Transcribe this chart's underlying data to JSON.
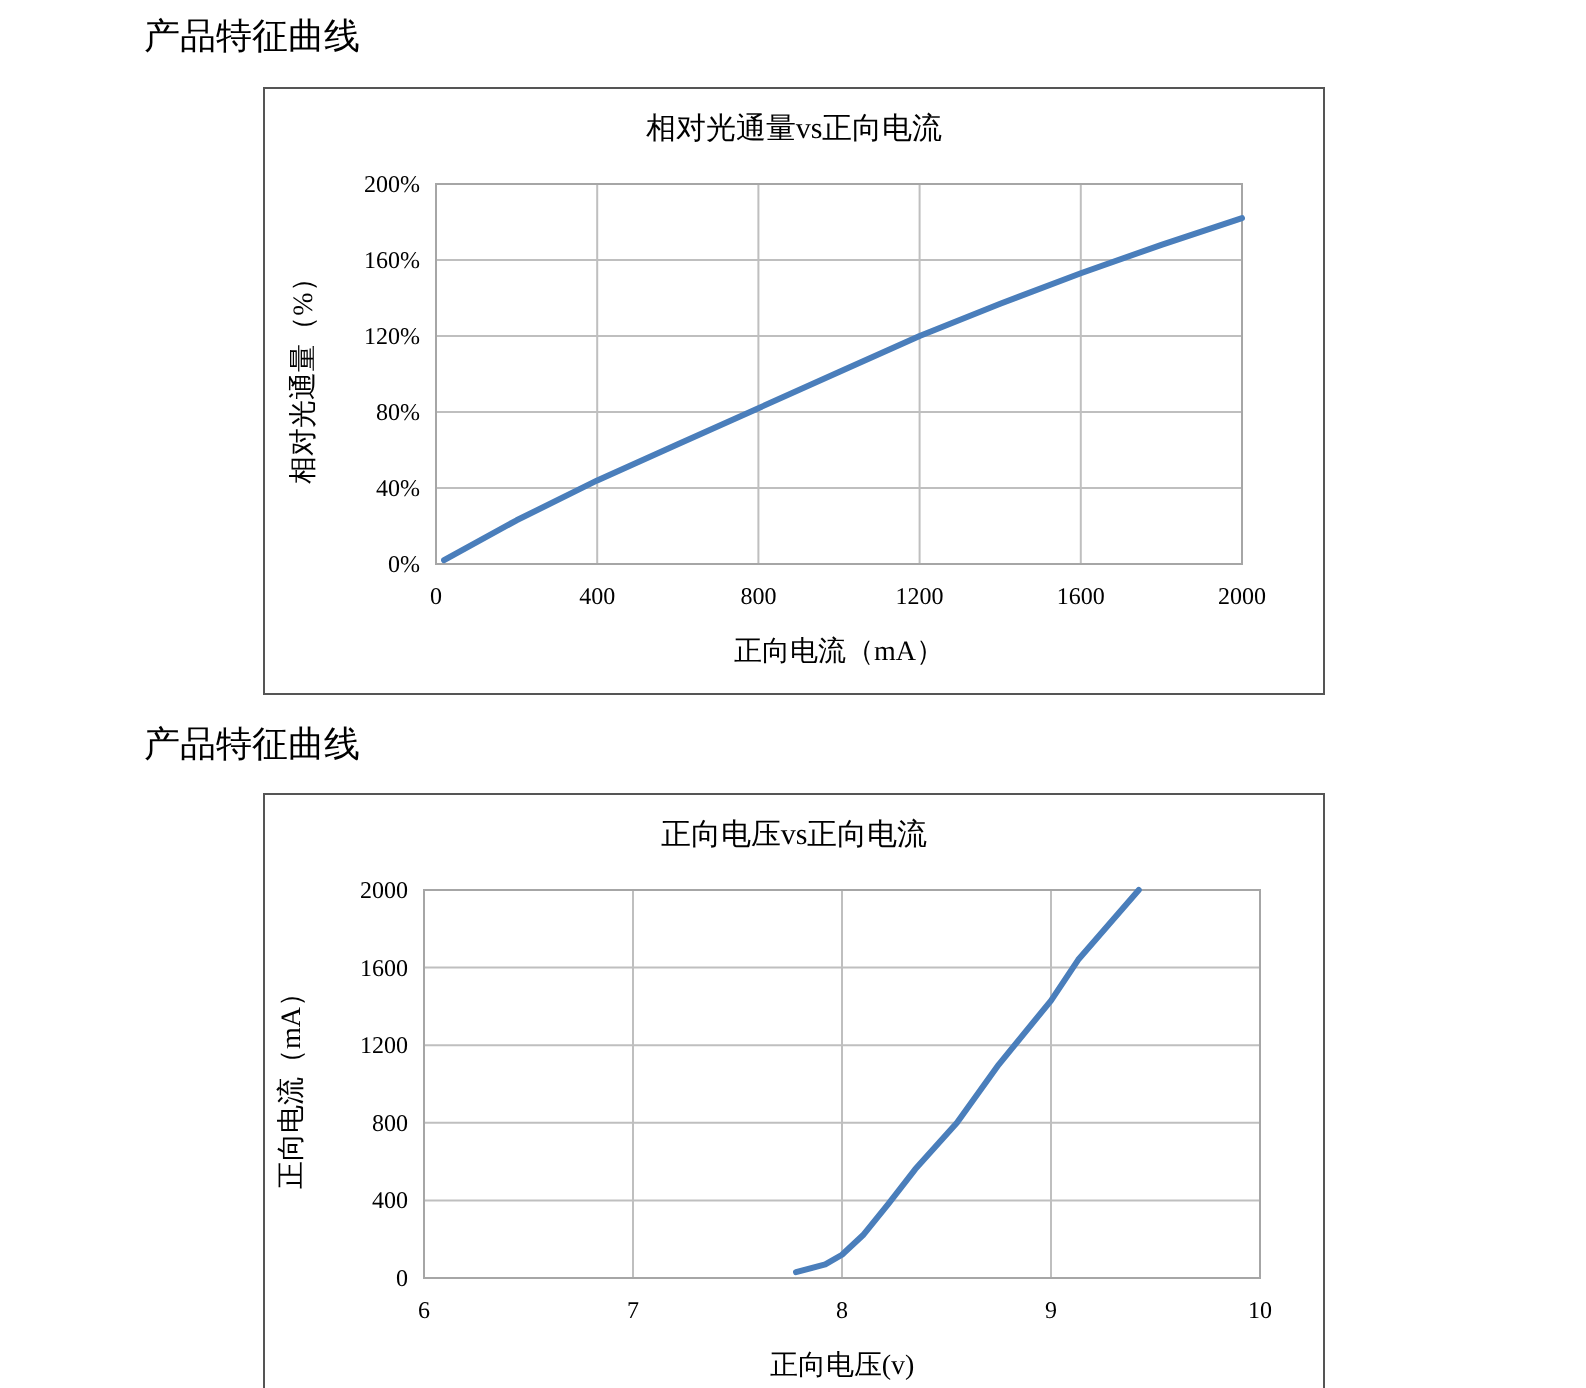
{
  "chart_data": [
    {
      "type": "line",
      "title": "相对光通量vs正向电流",
      "xlabel": "正向电流（mA）",
      "ylabel": "相对光通量（%）",
      "annotations": [
        "产品特征曲线"
      ],
      "x": [
        20,
        200,
        400,
        600,
        800,
        1000,
        1200,
        1400,
        1600,
        1800,
        2000
      ],
      "series": [
        {
          "color": "#4a7ebb",
          "values": [
            2,
            23,
            44,
            63,
            82,
            101,
            120,
            137,
            153,
            168,
            182
          ]
        }
      ],
      "xlim": [
        0,
        2000
      ],
      "xticks": [
        0,
        400,
        800,
        1200,
        1600,
        2000
      ],
      "ylim": [
        0,
        200
      ],
      "yticks": [
        {
          "value": 0,
          "label": "0%"
        },
        {
          "value": 40,
          "label": "40%"
        },
        {
          "value": 80,
          "label": "80%"
        },
        {
          "value": 120,
          "label": "120%"
        },
        {
          "value": 160,
          "label": "160%"
        },
        {
          "value": 200,
          "label": "200%"
        }
      ],
      "grid": true
    },
    {
      "type": "line",
      "title": "正向电压vs正向电流",
      "xlabel": "正向电压(v)",
      "ylabel": "正向电流（mA）",
      "annotations": [
        "产品特征曲线"
      ],
      "x": [
        7.78,
        7.92,
        8.0,
        8.1,
        8.22,
        8.35,
        8.55,
        8.75,
        9.0,
        9.13,
        9.42
      ],
      "series": [
        {
          "color": "#4a7ebb",
          "values": [
            30,
            70,
            120,
            220,
            380,
            560,
            800,
            1100,
            1430,
            1640,
            2000
          ]
        }
      ],
      "xlim": [
        6,
        10
      ],
      "xticks": [
        6,
        7,
        8,
        9,
        10
      ],
      "ylim": [
        0,
        2000
      ],
      "yticks": [
        0,
        400,
        800,
        1200,
        1600,
        2000
      ],
      "grid": true
    }
  ]
}
